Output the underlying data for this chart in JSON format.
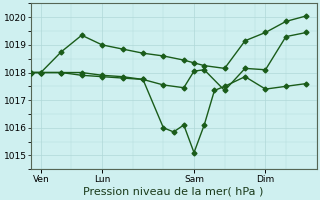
{
  "bg_color": "#cff0f0",
  "grid_color": "#b0d8d8",
  "line_color": "#1a5c1a",
  "marker_color": "#1a5c1a",
  "xlabel": "Pression niveau de la mer( hPa )",
  "xlabel_fontsize": 8,
  "ylim": [
    1014.5,
    1020.5
  ],
  "yticks": [
    1015,
    1016,
    1017,
    1018,
    1019,
    1020
  ],
  "ytick_fontsize": 6.5,
  "xtick_labels": [
    "Ven",
    "Lun",
    "Sam",
    "Dim"
  ],
  "xtick_positions": [
    0.5,
    3.5,
    8.0,
    11.5
  ],
  "x_total_min": 0,
  "x_total_max": 14,
  "series": [
    {
      "x": [
        0,
        0.5,
        1.5,
        2.5,
        3.5,
        4.5,
        5.5,
        6.5,
        7.5,
        8.0,
        8.5,
        9.5,
        10.5,
        11.5,
        12.5,
        13.5
      ],
      "y": [
        1018.0,
        1018.0,
        1018.75,
        1019.35,
        1019.0,
        1018.85,
        1018.7,
        1018.6,
        1018.45,
        1018.35,
        1018.25,
        1018.15,
        1019.15,
        1019.45,
        1019.85,
        1020.05
      ],
      "marker": "D",
      "ms": 2.5,
      "lw": 1.0
    },
    {
      "x": [
        0,
        0.5,
        1.5,
        2.5,
        3.5,
        4.5,
        5.5,
        6.5,
        7.5,
        8.0,
        8.5,
        9.5,
        10.5,
        11.5,
        12.5,
        13.5
      ],
      "y": [
        1018.0,
        1018.0,
        1018.0,
        1017.9,
        1017.85,
        1017.8,
        1017.75,
        1017.55,
        1017.45,
        1018.05,
        1018.1,
        1017.35,
        1018.15,
        1018.1,
        1019.3,
        1019.45
      ],
      "marker": "D",
      "ms": 2.5,
      "lw": 1.0
    },
    {
      "x": [
        0,
        0.5,
        1.5,
        2.5,
        3.5,
        4.5,
        5.5,
        6.5,
        7.0,
        7.5,
        8.0,
        8.5,
        9.0,
        9.5,
        10.5,
        11.5,
        12.5,
        13.5
      ],
      "y": [
        1018.0,
        1018.0,
        1018.0,
        1018.0,
        1017.9,
        1017.85,
        1017.75,
        1016.0,
        1015.85,
        1016.1,
        1015.1,
        1016.1,
        1017.35,
        1017.5,
        1017.85,
        1017.4,
        1017.5,
        1017.6
      ],
      "marker": "D",
      "ms": 2.5,
      "lw": 1.0
    }
  ]
}
